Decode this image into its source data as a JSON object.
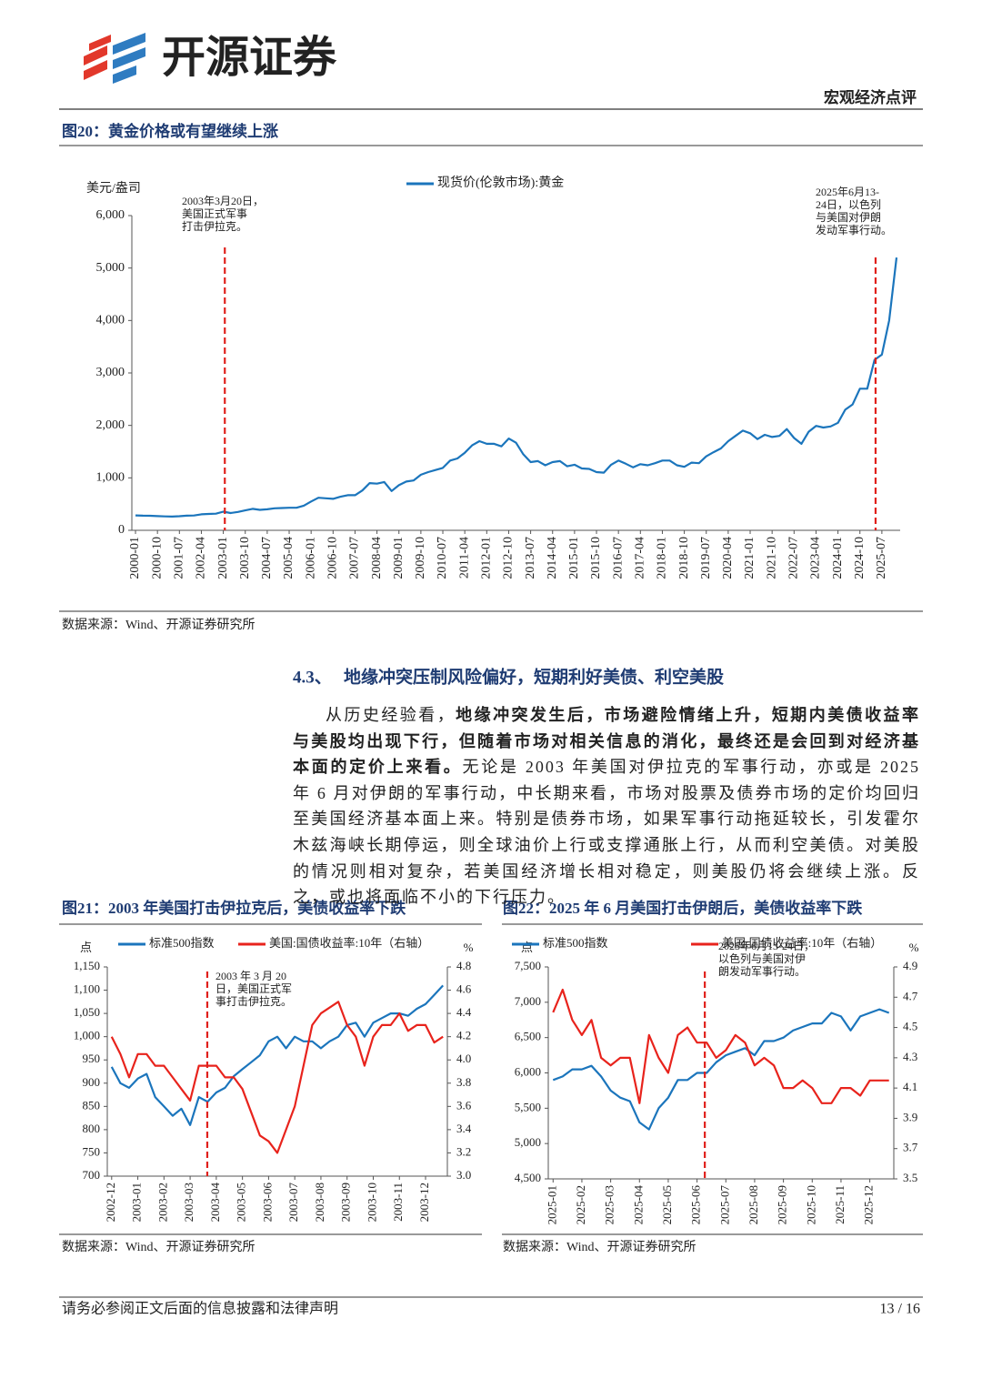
{
  "header": {
    "brand": "开源证券",
    "report_type": "宏观经济点评"
  },
  "chart_data": [
    {
      "type": "line",
      "title": "图20：黄金价格或有望继续上涨",
      "y_label": "美元/盎司",
      "categories": [
        "2000-01",
        null,
        null,
        "2000-10",
        null,
        null,
        "2001-07",
        null,
        null,
        "2002-04",
        null,
        null,
        "2003-01",
        null,
        null,
        "2003-10",
        null,
        null,
        "2004-07",
        null,
        null,
        "2005-04",
        null,
        null,
        "2006-01",
        null,
        null,
        "2006-10",
        null,
        null,
        "2007-07",
        null,
        null,
        "2008-04",
        null,
        null,
        "2009-01",
        null,
        null,
        "2009-10",
        null,
        null,
        "2010-07",
        null,
        null,
        "2011-04",
        null,
        null,
        "2012-01",
        null,
        null,
        "2012-10",
        null,
        null,
        "2013-07",
        null,
        null,
        "2014-04",
        null,
        null,
        "2015-01",
        null,
        null,
        "2015-10",
        null,
        null,
        "2016-07",
        null,
        null,
        "2017-04",
        null,
        null,
        "2018-01",
        null,
        null,
        "2018-10",
        null,
        null,
        "2019-07",
        null,
        null,
        "2020-04",
        null,
        null,
        "2021-01",
        null,
        null,
        "2021-10",
        null,
        null,
        "2022-07",
        null,
        null,
        "2023-04",
        null,
        null,
        "2024-01",
        null,
        null,
        "2024-10",
        null,
        null,
        "2025-07",
        null,
        null
      ],
      "series": [
        {
          "name": "现货价(伦敦市场):黄金",
          "color": "#1b75bc",
          "values": [
            285,
            280,
            278,
            270,
            265,
            262,
            268,
            280,
            282,
            305,
            312,
            318,
            355,
            330,
            350,
            380,
            410,
            390,
            400,
            420,
            425,
            430,
            430,
            470,
            550,
            620,
            610,
            600,
            640,
            670,
            670,
            760,
            900,
            890,
            920,
            750,
            860,
            930,
            950,
            1060,
            1110,
            1150,
            1190,
            1330,
            1370,
            1480,
            1620,
            1700,
            1650,
            1650,
            1600,
            1750,
            1670,
            1450,
            1300,
            1320,
            1240,
            1300,
            1320,
            1220,
            1250,
            1180,
            1170,
            1110,
            1100,
            1250,
            1330,
            1270,
            1200,
            1260,
            1240,
            1280,
            1330,
            1330,
            1240,
            1210,
            1290,
            1280,
            1410,
            1490,
            1560,
            1700,
            1800,
            1900,
            1850,
            1740,
            1820,
            1780,
            1800,
            1930,
            1760,
            1650,
            1880,
            1990,
            1960,
            1980,
            2050,
            2300,
            2400,
            2700,
            2700,
            3250,
            3350,
            4000,
            5200
          ]
        }
      ],
      "ylim": [
        0,
        6000
      ],
      "yticks": [
        0,
        {
          "value": 1000,
          "label": "1,000"
        },
        {
          "value": 2000,
          "label": "2,000"
        },
        {
          "value": 3000,
          "label": "3,000"
        },
        {
          "value": 4000,
          "label": "4,000"
        },
        {
          "value": 5000,
          "label": "5,000"
        },
        {
          "value": 6000,
          "label": "6,000"
        }
      ],
      "annotations": [
        [
          "2003年3月20日，",
          "美国正式军事",
          "打击伊拉克。"
        ],
        [
          "2025年6月13-",
          "24日，以色列",
          "与美国对伊朗",
          "发动军事行动。"
        ]
      ],
      "note": "数据来源：Wind、开源证券研究所"
    },
    {
      "type": "line",
      "title": "图21：2003 年美国打击伊拉克后，美债收益率下跌",
      "y_label": "点",
      "y2_label": "%",
      "categories": [
        "2002-12",
        null,
        null,
        "2003-01",
        null,
        null,
        "2003-02",
        null,
        null,
        "2003-03",
        null,
        null,
        "2003-04",
        null,
        null,
        "2003-05",
        null,
        null,
        "2003-06",
        null,
        null,
        "2003-07",
        null,
        null,
        "2003-08",
        null,
        null,
        "2003-09",
        null,
        null,
        "2003-10",
        null,
        null,
        "2003-11",
        null,
        null,
        "2003-12",
        null,
        null
      ],
      "series": [
        {
          "name": "标准500指数",
          "color": "#1b75bc",
          "values": [
            935,
            900,
            890,
            910,
            920,
            870,
            850,
            830,
            845,
            810,
            870,
            860,
            880,
            890,
            915,
            930,
            945,
            960,
            990,
            1000,
            975,
            1000,
            990,
            990,
            975,
            990,
            1000,
            1025,
            1030,
            1000,
            1030,
            1040,
            1050,
            1050,
            1045,
            1060,
            1070,
            1090,
            1110
          ]
        },
        {
          "name": "美国:国债收益率:10年（右轴）",
          "color": "#e8231c",
          "axis": "y2",
          "values": [
            4.2,
            4.05,
            3.85,
            4.05,
            4.05,
            3.95,
            3.95,
            3.85,
            3.75,
            3.65,
            3.95,
            3.95,
            3.95,
            3.85,
            3.85,
            3.75,
            3.55,
            3.35,
            3.3,
            3.2,
            3.4,
            3.6,
            3.95,
            4.3,
            4.4,
            4.45,
            4.5,
            4.3,
            4.2,
            3.95,
            4.2,
            4.3,
            4.3,
            4.4,
            4.25,
            4.3,
            4.3,
            4.15,
            4.2
          ]
        }
      ],
      "ylim": [
        700,
        1150
      ],
      "yticks": [
        700,
        750,
        800,
        850,
        900,
        950,
        {
          "value": 1000,
          "label": "1,000"
        },
        {
          "value": 1050,
          "label": "1,050"
        },
        {
          "value": 1100,
          "label": "1,100"
        },
        {
          "value": 1150,
          "label": "1,150"
        }
      ],
      "y2lim": [
        3.0,
        4.8
      ],
      "y2ticks": [
        {
          "value": 3,
          "label": "3.0"
        },
        3.2,
        3.4,
        3.6,
        3.8,
        {
          "value": 4,
          "label": "4.0"
        },
        4.2,
        4.4,
        4.6,
        4.8
      ],
      "annotations": [
        [
          "2003 年 3 月 20",
          "日，美国正式军",
          "事打击伊拉克。"
        ]
      ],
      "note": "数据来源：Wind、开源证券研究所"
    },
    {
      "type": "line",
      "title": "图22：2025 年 6 月美国打击伊朗后，美债收益率下跌",
      "y_label": "点",
      "y2_label": "%",
      "categories": [
        "2025-01",
        null,
        null,
        "2025-02",
        null,
        null,
        "2025-03",
        null,
        null,
        "2025-04",
        null,
        null,
        "2025-05",
        null,
        null,
        "2025-06",
        null,
        null,
        "2025-07",
        null,
        null,
        "2025-08",
        null,
        null,
        "2025-09",
        null,
        null,
        "2025-10",
        null,
        null,
        "2025-11",
        null,
        null,
        "2025-12",
        null,
        null
      ],
      "series": [
        {
          "name": "标准500指数",
          "color": "#1b75bc",
          "values": [
            5900,
            5950,
            6050,
            6050,
            6100,
            5950,
            5750,
            5650,
            5600,
            5300,
            5200,
            5500,
            5650,
            5900,
            5900,
            6000,
            6000,
            6150,
            6250,
            6300,
            6350,
            6250,
            6450,
            6450,
            6500,
            6600,
            6650,
            6700,
            6700,
            6850,
            6800,
            6600,
            6800,
            6850,
            6900,
            6850
          ]
        },
        {
          "name": "美国:国债收益率:10年（右轴）",
          "color": "#e8231c",
          "axis": "y2",
          "values": [
            4.6,
            4.75,
            4.55,
            4.45,
            4.55,
            4.3,
            4.25,
            4.3,
            4.3,
            4.0,
            4.45,
            4.3,
            4.2,
            4.45,
            4.5,
            4.4,
            4.4,
            4.3,
            4.35,
            4.45,
            4.4,
            4.25,
            4.3,
            4.25,
            4.1,
            4.1,
            4.15,
            4.1,
            4.0,
            4.0,
            4.1,
            4.1,
            4.05,
            4.15,
            4.15,
            4.15
          ]
        }
      ],
      "ylim": [
        4500,
        7500
      ],
      "yticks": [
        {
          "value": 4500,
          "label": "4,500"
        },
        {
          "value": 5000,
          "label": "5,000"
        },
        {
          "value": 5500,
          "label": "5,500"
        },
        {
          "value": 6000,
          "label": "6,000"
        },
        {
          "value": 6500,
          "label": "6,500"
        },
        {
          "value": 7000,
          "label": "7,000"
        },
        {
          "value": 7500,
          "label": "7,500"
        }
      ],
      "y2lim": [
        3.5,
        4.9
      ],
      "y2ticks": [
        3.5,
        3.7,
        3.9,
        4.1,
        4.3,
        4.5,
        4.7,
        4.9
      ],
      "annotations": [
        [
          "2025年6月13-24日，",
          "以色列与美国对伊",
          "朗发动军事行动。"
        ]
      ],
      "note": "数据来源：Wind、开源证券研究所"
    }
  ],
  "section": {
    "number": "4.3、",
    "title": "地缘冲突压制风险偏好，短期利好美债、利空美股"
  },
  "paragraph": [
    {
      "text": "从历史经验看，",
      "bold": false
    },
    {
      "text": "地缘冲突发生后，市场避险情绪上升，短期内美债收益率与美股均出现下行，但随着市场对相关信息的消化，最终还是会回到对经济基本面的定价上来看。",
      "bold": true
    },
    {
      "text": "无论是 2003 年美国对伊拉克的军事行动，亦或是 2025 年 6 月对伊朗的军事行动，中长期来看，市场对股票及债券市场的定价均回归至美国经济基本面上来。特别是债券市场，如果军事行动拖延较长，引发霍尔木兹海峡长期停运，则全球油价上行或支撑通胀上行，从而利空美债。对美股的情况则相对复杂，若美国经济增长相对稳定，则美股仍将会继续上涨。反之，或也将面临不小的下行压力。",
      "bold": false
    }
  ],
  "footer": {
    "disclaimer": "请务必参阅正文后面的信息披露和法律声明",
    "page": "13 / 16"
  }
}
